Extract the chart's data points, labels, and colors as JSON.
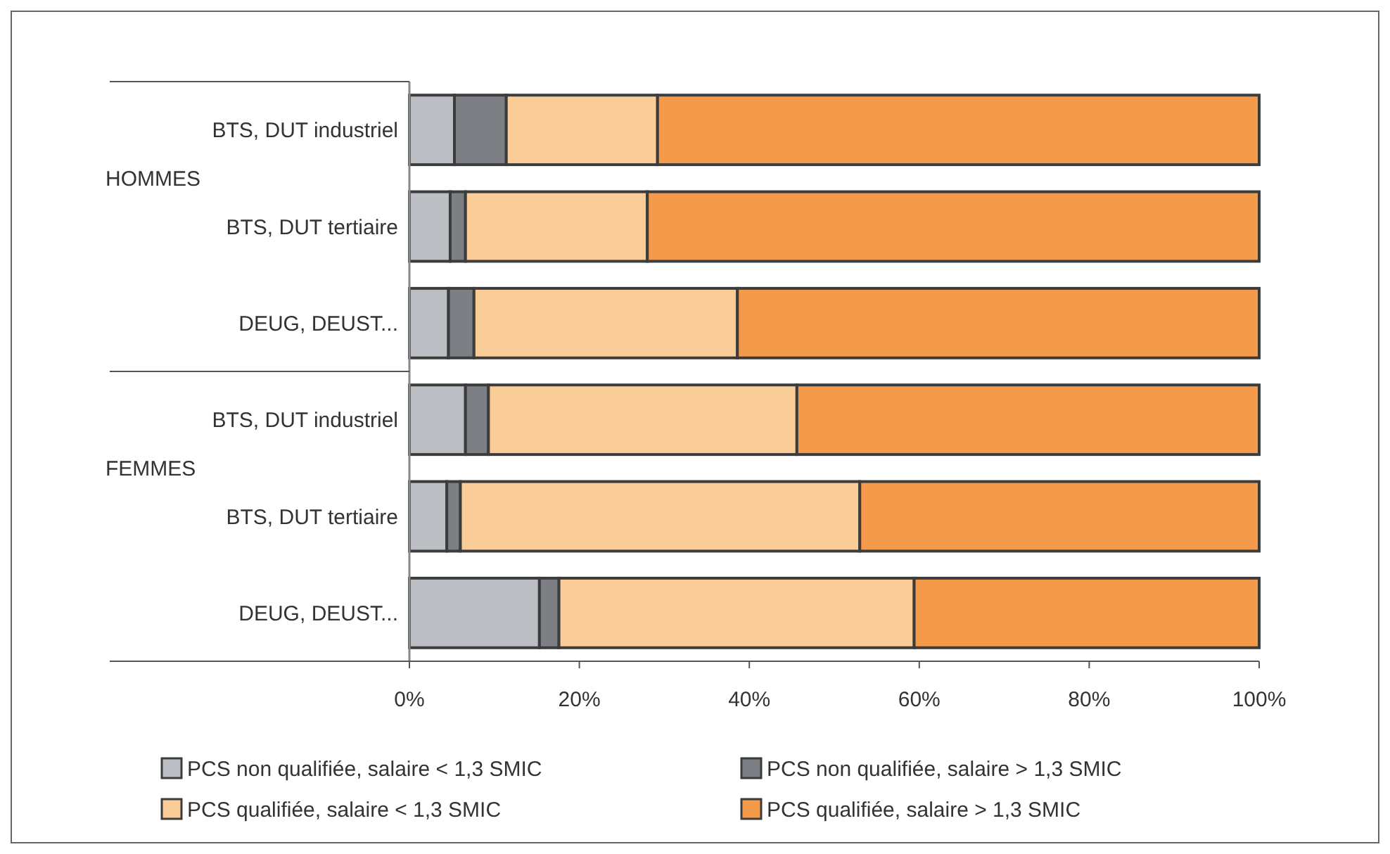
{
  "chart_data": {
    "type": "bar",
    "orientation": "horizontal",
    "stacked": true,
    "categories": [
      "BTS, DUT industriel",
      "BTS, DUT tertiaire",
      "DEUG, DEUST...",
      "BTS, DUT industriel",
      "BTS, DUT tertiaire",
      "DEUG, DEUST..."
    ],
    "series": [
      {
        "name": "PCS non qualifiée, salaire < 1,3 SMIC",
        "color": "#bbbec3",
        "values": [
          5.3,
          4.8,
          4.6,
          6.6,
          4.4,
          15.3
        ]
      },
      {
        "name": "PCS non qualifiée, salaire > 1,3 SMIC",
        "color": "#7c7f84",
        "values": [
          6.1,
          1.8,
          3.0,
          2.7,
          1.6,
          2.3
        ]
      },
      {
        "name": "PCS qualifiée, salaire < 1,3 SMIC",
        "color": "#facc98",
        "values": [
          17.8,
          21.4,
          31.0,
          36.3,
          47.0,
          41.8
        ]
      },
      {
        "name": "PCS qualifiée, salaire > 1,3 SMIC",
        "color": "#f39a4b",
        "values": [
          70.8,
          72.0,
          61.4,
          54.4,
          47.0,
          40.6
        ]
      }
    ],
    "xlim": [
      0,
      100
    ],
    "xticks": [
      {
        "value": 0,
        "label": "0%"
      },
      {
        "value": 20,
        "label": "20%"
      },
      {
        "value": 40,
        "label": "40%"
      },
      {
        "value": 60,
        "label": "60%"
      },
      {
        "value": 80,
        "label": "80%"
      },
      {
        "value": 100,
        "label": "100%"
      }
    ],
    "annotations": [
      "HOMMES",
      "FEMMES"
    ],
    "legend": "bottom"
  }
}
